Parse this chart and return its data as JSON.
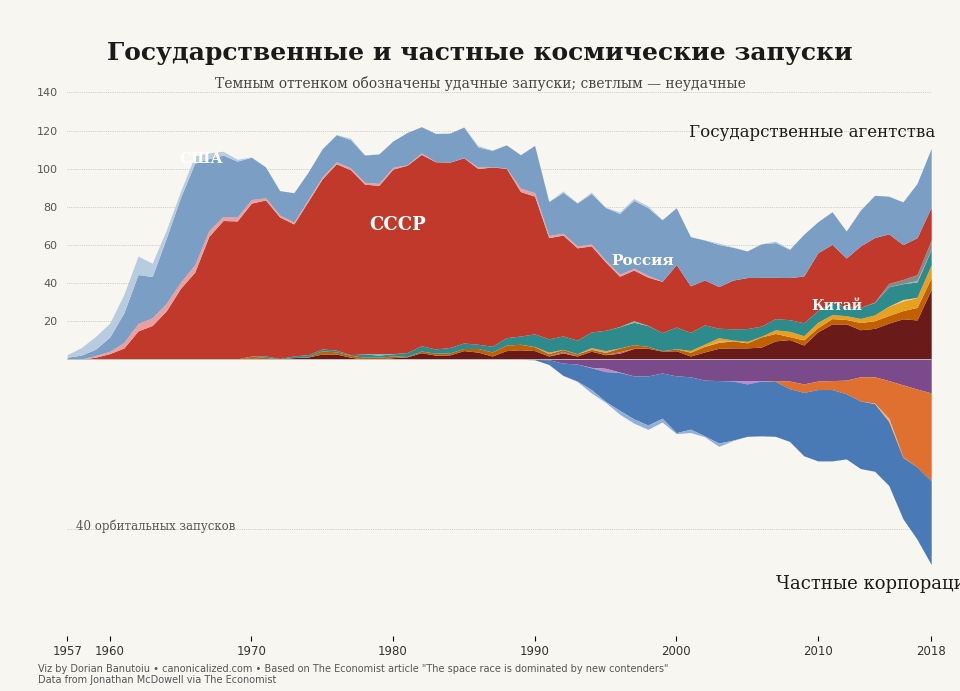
{
  "title": "Государственные и частные космические запуски",
  "subtitle": "Темным оттенком обозначены удачные запуски; светлым — неудачные",
  "label_gov": "Государственные агентства",
  "label_priv": "Частные корпорации",
  "label_usa": "США",
  "label_ussr": "СССР",
  "label_russia": "Россия",
  "label_china": "Китай",
  "label_scale": "40 орбитальных запусков",
  "footer1": "Viz by Dorian Banutoiu • canonicalized.com • Based on The Economist article \"The space race is dominated by new contenders\"",
  "footer2": "Data from Jonathan McDowell via The Economist",
  "background_color": "#f8f6f0",
  "years": [
    1957,
    1958,
    1959,
    1960,
    1961,
    1962,
    1963,
    1964,
    1965,
    1966,
    1967,
    1968,
    1969,
    1970,
    1971,
    1972,
    1973,
    1974,
    1975,
    1976,
    1977,
    1978,
    1979,
    1980,
    1981,
    1982,
    1983,
    1984,
    1985,
    1986,
    1987,
    1988,
    1989,
    1990,
    1991,
    1992,
    1993,
    1994,
    1995,
    1996,
    1997,
    1998,
    1999,
    2000,
    2001,
    2002,
    2003,
    2004,
    2005,
    2006,
    2007,
    2008,
    2009,
    2010,
    2011,
    2012,
    2013,
    2014,
    2015,
    2016,
    2017,
    2018
  ],
  "ussr_success": [
    0,
    0,
    1,
    3,
    5,
    16,
    17,
    25,
    38,
    44,
    66,
    74,
    71,
    81,
    83,
    74,
    67,
    81,
    89,
    99,
    98,
    88,
    87,
    98,
    98,
    101,
    98,
    97,
    98,
    91,
    95,
    90,
    74,
    75,
    50,
    54,
    48,
    46,
    36,
    25,
    27,
    25,
    26,
    35,
    23,
    24,
    21,
    26,
    27,
    26,
    21,
    22,
    24,
    31,
    31,
    24,
    33,
    35,
    26,
    17,
    20,
    17
  ],
  "ussr_fail": [
    0,
    0,
    1,
    1,
    3,
    4,
    4,
    4,
    3,
    4,
    3,
    2,
    2,
    2,
    1,
    1,
    1,
    1,
    1,
    1,
    1,
    1,
    1,
    1,
    0,
    1,
    0,
    0,
    0,
    1,
    0,
    0,
    2,
    2,
    1,
    1,
    1,
    1,
    1,
    1,
    1,
    1,
    0,
    0,
    0,
    0,
    0,
    0,
    0,
    0,
    0,
    0,
    0,
    0,
    0,
    0,
    0,
    0,
    0,
    0,
    0,
    0
  ],
  "usa_success": [
    1,
    2,
    3,
    7,
    15,
    28,
    19,
    35,
    44,
    57,
    36,
    32,
    30,
    22,
    16,
    12,
    16,
    14,
    15,
    14,
    15,
    14,
    16,
    13,
    18,
    13,
    15,
    15,
    17,
    10,
    8,
    12,
    17,
    27,
    16,
    22,
    22,
    27,
    27,
    32,
    36,
    36,
    32,
    30,
    26,
    20,
    23,
    17,
    13,
    18,
    19,
    13,
    24,
    15,
    18,
    13,
    19,
    23,
    19,
    22,
    29,
    31
  ],
  "usa_fail": [
    1,
    4,
    7,
    7,
    10,
    10,
    7,
    4,
    3,
    4,
    3,
    2,
    1,
    0,
    0,
    0,
    0,
    0,
    0,
    0,
    1,
    0,
    0,
    0,
    0,
    0,
    0,
    0,
    0,
    1,
    0,
    0,
    0,
    0,
    0,
    1,
    0,
    1,
    0,
    1,
    1,
    1,
    0,
    0,
    0,
    0,
    1,
    0,
    0,
    0,
    1,
    0,
    0,
    0,
    0,
    0,
    0,
    0,
    0,
    0,
    0,
    0
  ],
  "china_success": [
    0,
    0,
    0,
    0,
    0,
    0,
    0,
    0,
    0,
    0,
    0,
    0,
    0,
    1,
    0,
    0,
    1,
    1,
    3,
    3,
    1,
    0,
    0,
    1,
    1,
    4,
    2,
    2,
    5,
    4,
    1,
    5,
    5,
    5,
    1,
    4,
    1,
    5,
    2,
    3,
    6,
    6,
    4,
    5,
    1,
    4,
    6,
    6,
    6,
    6,
    10,
    11,
    6,
    15,
    19,
    19,
    15,
    16,
    19,
    22,
    18,
    39
  ],
  "china_fail": [
    0,
    0,
    0,
    0,
    0,
    0,
    0,
    0,
    0,
    0,
    0,
    0,
    0,
    0,
    0,
    0,
    0,
    0,
    0,
    0,
    0,
    0,
    0,
    0,
    0,
    0,
    0,
    0,
    0,
    0,
    0,
    0,
    0,
    0,
    0,
    1,
    0,
    0,
    0,
    1,
    0,
    0,
    0,
    0,
    0,
    0,
    0,
    0,
    0,
    0,
    0,
    0,
    0,
    0,
    0,
    0,
    0,
    0,
    0,
    0,
    0,
    0
  ],
  "europe_success": [
    0,
    0,
    0,
    0,
    0,
    0,
    0,
    0,
    0,
    0,
    0,
    0,
    0,
    0,
    1,
    0,
    1,
    1,
    1,
    1,
    0,
    2,
    1,
    1,
    2,
    3,
    2,
    3,
    3,
    2,
    3,
    4,
    4,
    7,
    7,
    7,
    7,
    8,
    11,
    11,
    12,
    11,
    9,
    12,
    9,
    11,
    4,
    6,
    7,
    5,
    6,
    6,
    7,
    6,
    7,
    4,
    6,
    6,
    11,
    8,
    8,
    8
  ],
  "europe_fail": [
    0,
    0,
    0,
    0,
    0,
    0,
    0,
    0,
    0,
    0,
    0,
    0,
    0,
    0,
    0,
    0,
    0,
    0,
    0,
    0,
    0,
    0,
    1,
    0,
    0,
    0,
    0,
    0,
    0,
    0,
    0,
    0,
    0,
    0,
    0,
    0,
    0,
    0,
    0,
    0,
    1,
    0,
    0,
    0,
    0,
    0,
    0,
    0,
    0,
    0,
    0,
    0,
    0,
    0,
    0,
    0,
    0,
    0,
    0,
    0,
    1,
    0
  ],
  "india_success": [
    0,
    0,
    0,
    0,
    0,
    0,
    0,
    0,
    0,
    0,
    0,
    0,
    0,
    0,
    0,
    0,
    0,
    0,
    0,
    0,
    0,
    0,
    0,
    0,
    0,
    0,
    0,
    0,
    0,
    0,
    0,
    0,
    0,
    0,
    0,
    0,
    0,
    0,
    0,
    0,
    0,
    0,
    0,
    0,
    1,
    1,
    2,
    0,
    1,
    0,
    2,
    3,
    2,
    3,
    2,
    2,
    2,
    3,
    5,
    5,
    5,
    7
  ],
  "india_fail": [
    0,
    0,
    0,
    0,
    0,
    0,
    0,
    0,
    0,
    0,
    0,
    0,
    0,
    0,
    0,
    0,
    0,
    0,
    0,
    0,
    0,
    0,
    0,
    0,
    0,
    0,
    0,
    0,
    0,
    0,
    0,
    0,
    0,
    0,
    0,
    0,
    0,
    0,
    0,
    0,
    0,
    0,
    0,
    0,
    0,
    0,
    0,
    0,
    0,
    0,
    0,
    0,
    0,
    0,
    0,
    0,
    0,
    0,
    0,
    1,
    0,
    0
  ],
  "japan_success": [
    0,
    0,
    0,
    0,
    0,
    0,
    0,
    0,
    0,
    0,
    0,
    0,
    0,
    1,
    1,
    0,
    0,
    0,
    2,
    1,
    1,
    1,
    1,
    1,
    0,
    1,
    1,
    1,
    1,
    2,
    2,
    3,
    3,
    2,
    1,
    1,
    1,
    1,
    1,
    2,
    2,
    1,
    0,
    1,
    2,
    3,
    3,
    4,
    2,
    6,
    4,
    1,
    3,
    2,
    3,
    2,
    4,
    4,
    4,
    4,
    7,
    6
  ],
  "japan_fail": [
    0,
    0,
    0,
    0,
    0,
    0,
    0,
    0,
    0,
    0,
    0,
    0,
    0,
    0,
    0,
    0,
    0,
    0,
    0,
    0,
    0,
    0,
    0,
    0,
    0,
    0,
    0,
    0,
    0,
    0,
    0,
    0,
    0,
    0,
    1,
    0,
    0,
    1,
    1,
    0,
    0,
    0,
    0,
    0,
    0,
    0,
    1,
    0,
    0,
    0,
    0,
    0,
    0,
    0,
    0,
    0,
    0,
    0,
    0,
    0,
    0,
    0
  ],
  "other_gov_success": [
    0,
    0,
    0,
    0,
    0,
    0,
    0,
    0,
    0,
    0,
    0,
    0,
    0,
    0,
    0,
    0,
    0,
    0,
    0,
    0,
    0,
    0,
    0,
    0,
    0,
    0,
    0,
    0,
    0,
    0,
    0,
    0,
    0,
    0,
    0,
    0,
    0,
    0,
    0,
    0,
    0,
    0,
    0,
    0,
    0,
    0,
    0,
    0,
    0,
    0,
    0,
    0,
    0,
    0,
    0,
    0,
    0,
    0,
    2,
    2,
    3,
    5
  ],
  "private_main_success": [
    0,
    0,
    0,
    0,
    0,
    0,
    0,
    0,
    0,
    0,
    0,
    0,
    0,
    0,
    0,
    0,
    0,
    0,
    0,
    0,
    0,
    0,
    0,
    0,
    0,
    0,
    0,
    0,
    0,
    0,
    0,
    0,
    0,
    0,
    1,
    3,
    4,
    5,
    7,
    9,
    10,
    12,
    10,
    14,
    12,
    13,
    15,
    14,
    12,
    13,
    13,
    12,
    15,
    17,
    17,
    15,
    16,
    16,
    15,
    14,
    17,
    20
  ],
  "private_main_fail": [
    0,
    0,
    0,
    0,
    0,
    0,
    0,
    0,
    0,
    0,
    0,
    0,
    0,
    0,
    0,
    0,
    0,
    0,
    0,
    0,
    0,
    0,
    0,
    0,
    0,
    0,
    0,
    0,
    0,
    0,
    0,
    0,
    0,
    0,
    0,
    0,
    0,
    1,
    0,
    1,
    1,
    1,
    1,
    0,
    1,
    0,
    1,
    0,
    0,
    0,
    0,
    0,
    0,
    0,
    0,
    0,
    0,
    0,
    0,
    0,
    0,
    0
  ],
  "spacex_success": [
    0,
    0,
    0,
    0,
    0,
    0,
    0,
    0,
    0,
    0,
    0,
    0,
    0,
    0,
    0,
    0,
    0,
    0,
    0,
    0,
    0,
    0,
    0,
    0,
    0,
    0,
    0,
    0,
    0,
    0,
    0,
    0,
    0,
    0,
    0,
    0,
    0,
    0,
    0,
    0,
    0,
    0,
    0,
    0,
    0,
    0,
    0,
    0,
    0,
    0,
    0,
    2,
    2,
    2,
    2,
    3,
    6,
    6,
    8,
    18,
    18,
    21
  ],
  "spacex_fail": [
    0,
    0,
    0,
    0,
    0,
    0,
    0,
    0,
    0,
    0,
    0,
    0,
    0,
    0,
    0,
    0,
    0,
    0,
    0,
    0,
    0,
    0,
    0,
    0,
    0,
    0,
    0,
    0,
    0,
    0,
    0,
    0,
    0,
    0,
    0,
    0,
    0,
    0,
    0,
    0,
    0,
    0,
    0,
    0,
    0,
    0,
    0,
    0,
    0,
    0,
    0,
    0,
    0,
    0,
    0,
    0,
    0,
    0,
    1,
    0,
    0,
    0
  ],
  "private_other_success": [
    0,
    0,
    0,
    0,
    0,
    0,
    0,
    0,
    0,
    0,
    0,
    0,
    0,
    0,
    0,
    0,
    0,
    0,
    0,
    0,
    0,
    0,
    0,
    0,
    0,
    0,
    0,
    0,
    0,
    0,
    0,
    0,
    0,
    0,
    0,
    1,
    1,
    2,
    2,
    3,
    4,
    4,
    3,
    4,
    4,
    5,
    5,
    5,
    5,
    5,
    5,
    5,
    6,
    5,
    5,
    5,
    4,
    4,
    5,
    6,
    7,
    8
  ],
  "private_other_fail": [
    0,
    0,
    0,
    0,
    0,
    0,
    0,
    0,
    0,
    0,
    0,
    0,
    0,
    0,
    0,
    0,
    0,
    0,
    0,
    0,
    0,
    0,
    0,
    0,
    0,
    0,
    0,
    0,
    0,
    0,
    0,
    0,
    0,
    0,
    0,
    0,
    0,
    0,
    1,
    0,
    0,
    0,
    0,
    0,
    0,
    0,
    0,
    0,
    1,
    0,
    0,
    0,
    0,
    0,
    0,
    0,
    0,
    0,
    0,
    0,
    0,
    0
  ],
  "color_ussr_s": "#c0392b",
  "color_ussr_f": "#e8a0a0",
  "color_usa_s": "#7b9ec4",
  "color_usa_f": "#b8cce0",
  "color_china_s": "#6b1a1a",
  "color_china_f": "#b07070",
  "color_europe_s": "#2e8b8b",
  "color_europe_f": "#7bbcbc",
  "color_india_s": "#e8a020",
  "color_india_f": "#f0cc80",
  "color_japan_s": "#c06000",
  "color_japan_f": "#e0a060",
  "color_other_gov_s": "#888888",
  "color_other_gov_f": "#bbbbbb",
  "color_private_main_s": "#4a7ab5",
  "color_private_main_f": "#90b0d8",
  "color_spacex_s": "#e07030",
  "color_spacex_f": "#f0b080",
  "color_private_other_s": "#7b4a8b",
  "color_private_other_f": "#bb8acc"
}
